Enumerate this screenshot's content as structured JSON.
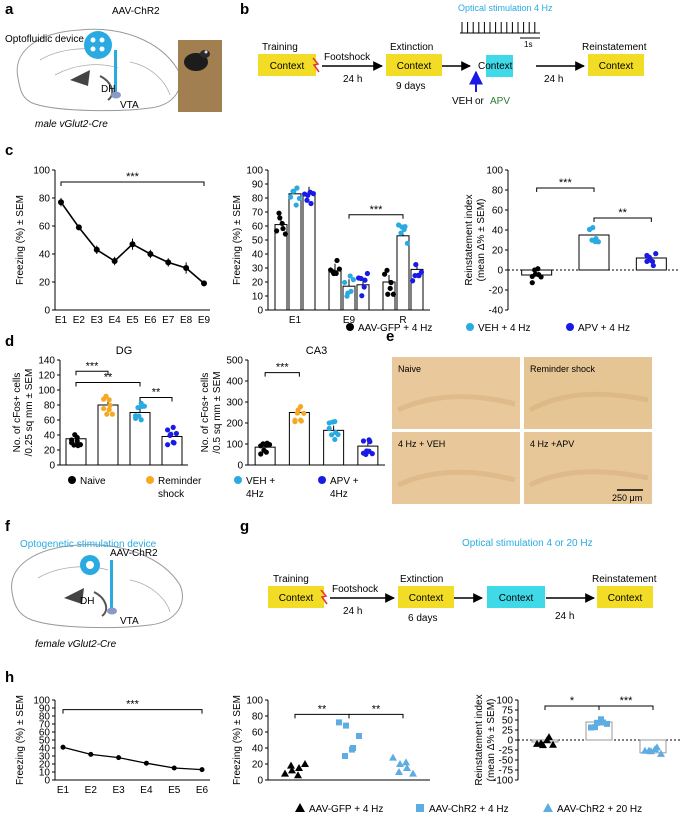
{
  "panels": {
    "a": {
      "letter": "a",
      "device": "Optofluidic device",
      "virus": "AAV-ChR2",
      "dh": "DH",
      "vta": "VTA",
      "caption": "male vGlut2-Cre"
    },
    "b": {
      "letter": "b",
      "training": "Training",
      "context": "Context",
      "footshock": "Footshock",
      "delay1": "24 h",
      "extinction": "Extinction",
      "days": "9 days",
      "stim_label": "Optical stimulation 4 Hz",
      "scale": "1s",
      "treat_veh": "VEH",
      "treat_or": "or",
      "treat_apv": "APV",
      "reinstatement": "Reinstatement",
      "delay2": "24 h"
    },
    "c": {
      "letter": "c"
    },
    "d": {
      "letter": "d"
    },
    "e": {
      "letter": "e",
      "labels": [
        "Naive",
        "Reminder shock",
        "4 Hz + VEH",
        "4 Hz +APV"
      ],
      "scale": "250 μm"
    },
    "f": {
      "letter": "f",
      "device": "Optogenetic stimulation device",
      "virus": "AAV-ChR2",
      "dh": "DH",
      "vta": "VTA",
      "caption": "female vGlut2-Cre"
    },
    "g": {
      "letter": "g",
      "training": "Training",
      "context": "Context",
      "footshock": "Footshock",
      "delay1": "24 h",
      "extinction": "Extinction",
      "days": "6 days",
      "stim_label": "Optical stimulation 4 or 20 Hz",
      "reinstatement": "Reinstatement",
      "delay2": "24 h"
    },
    "h": {
      "letter": "h"
    }
  },
  "legends": {
    "c": [
      {
        "label": "AAV-GFP + 4 Hz",
        "color": "#000000"
      },
      {
        "label": "VEH + 4 Hz",
        "color": "#29ABE2"
      },
      {
        "label": "APV + 4 Hz",
        "color": "#1A1AE6"
      }
    ],
    "d": [
      {
        "label": "Naive",
        "color": "#000000"
      },
      {
        "label": "Reminder shock",
        "color": "#F7A823"
      },
      {
        "label": "VEH + 4Hz",
        "color": "#29ABE2"
      },
      {
        "label": "APV + 4Hz",
        "color": "#1A1AE6"
      }
    ],
    "h": [
      {
        "label": "AAV-GFP + 4 Hz",
        "color": "#000000"
      },
      {
        "label": "AAV-ChR2 + 4 Hz",
        "color": "#5DADE2"
      },
      {
        "label": "AAV-ChR2 + 20 Hz",
        "color": "#5DADE2"
      }
    ]
  },
  "colors": {
    "context_box": "#F2DC26",
    "stim_box": "#3FD9E8",
    "stim_text": "#29ABE2",
    "apv_text": "#2E7D32",
    "shock": "#E53935",
    "brain_blue": "#29ABE2",
    "tissue": "#E9C89C"
  },
  "chart_data": [
    {
      "id": "c1",
      "type": "line",
      "ylabel": "Freezing (%) ± SEM",
      "ylim": [
        0,
        100
      ],
      "yticks": [
        0,
        20,
        40,
        60,
        80,
        100
      ],
      "categories": [
        "E1",
        "E2",
        "E3",
        "E4",
        "E5",
        "E6",
        "E7",
        "E8",
        "E9"
      ],
      "values": [
        77,
        59,
        43,
        35,
        47,
        40,
        34,
        30,
        19
      ],
      "errors": [
        3,
        2,
        3,
        3,
        4,
        3,
        3,
        4,
        2
      ],
      "significance": "***"
    },
    {
      "id": "c2",
      "type": "bar",
      "ylabel": "Freezing (%) ± SEM",
      "ylim": [
        0,
        100
      ],
      "yticks": [
        0,
        10,
        20,
        30,
        40,
        50,
        60,
        70,
        80,
        90,
        100
      ],
      "categories": [
        "E1",
        "E9",
        "R"
      ],
      "series": [
        {
          "name": "AAV-GFP + 4 Hz",
          "values": [
            61,
            28,
            20
          ]
        },
        {
          "name": "VEH + 4 Hz",
          "values": [
            83,
            17,
            53
          ]
        },
        {
          "name": "APV + 4 Hz",
          "values": [
            83,
            18,
            29
          ]
        }
      ],
      "significance": "***"
    },
    {
      "id": "c3",
      "type": "bar",
      "ylabel": "Reinstatement index (mean Δ% ± SEM)",
      "ylim": [
        -40,
        100
      ],
      "yticks": [
        -40,
        -20,
        0,
        20,
        40,
        60,
        80,
        100
      ],
      "categories": [
        "AAV-GFP + 4 Hz",
        "VEH + 4 Hz",
        "APV + 4 Hz"
      ],
      "values": [
        -5,
        35,
        12
      ],
      "significance": [
        "***",
        "**"
      ]
    },
    {
      "id": "d1",
      "type": "bar",
      "title": "DG",
      "ylabel": "No. of cFos+ cells /0.25 sq mm ± SEM",
      "ylim": [
        0,
        140
      ],
      "yticks": [
        0,
        20,
        40,
        60,
        80,
        100,
        120,
        140
      ],
      "categories": [
        "Naive",
        "Reminder shock",
        "VEH + 4Hz",
        "APV + 4Hz"
      ],
      "values": [
        35,
        80,
        70,
        38
      ],
      "significance": [
        "***",
        "**",
        "**"
      ]
    },
    {
      "id": "d2",
      "type": "bar",
      "title": "CA3",
      "ylabel": "No. of cFos+ cells /0.5 sq mm ± SEM",
      "ylim": [
        0,
        500
      ],
      "yticks": [
        0,
        100,
        200,
        300,
        400,
        500
      ],
      "categories": [
        "Naive",
        "Reminder shock",
        "VEH + 4Hz",
        "APV + 4Hz"
      ],
      "values": [
        85,
        250,
        165,
        90
      ],
      "significance": "***"
    },
    {
      "id": "h1",
      "type": "line",
      "ylabel": "Freezing (%) ± SEM",
      "ylim": [
        0,
        100
      ],
      "yticks": [
        0,
        10,
        20,
        30,
        40,
        50,
        60,
        70,
        80,
        90,
        100
      ],
      "categories": [
        "E1",
        "E2",
        "E3",
        "E4",
        "E5",
        "E6"
      ],
      "values": [
        41,
        32,
        28,
        21,
        15,
        13
      ],
      "errors": [
        3,
        2,
        3,
        2,
        2,
        1
      ],
      "significance": "***"
    },
    {
      "id": "h2",
      "type": "scatter",
      "ylabel": "Freezing (%) ± SEM",
      "ylim": [
        0,
        100
      ],
      "yticks": [
        0,
        20,
        40,
        60,
        80,
        100
      ],
      "categories": [
        "AAV-GFP + 4 Hz",
        "AAV-ChR2 + 4 Hz",
        "AAV-ChR2 + 20 Hz"
      ],
      "significance": [
        "**",
        "**"
      ]
    },
    {
      "id": "h3",
      "type": "bar",
      "ylabel": "Reinstatement index (mean Δ% ± SEM)",
      "ylim": [
        -100,
        100
      ],
      "yticks": [
        -100,
        -75,
        -50,
        -25,
        0,
        25,
        50,
        75,
        100
      ],
      "categories": [
        "AAV-GFP + 4 Hz",
        "AAV-ChR2 + 4 Hz",
        "AAV-ChR2 + 20 Hz"
      ],
      "values": [
        -5,
        45,
        -32
      ],
      "significance": [
        "*",
        "***"
      ]
    }
  ]
}
